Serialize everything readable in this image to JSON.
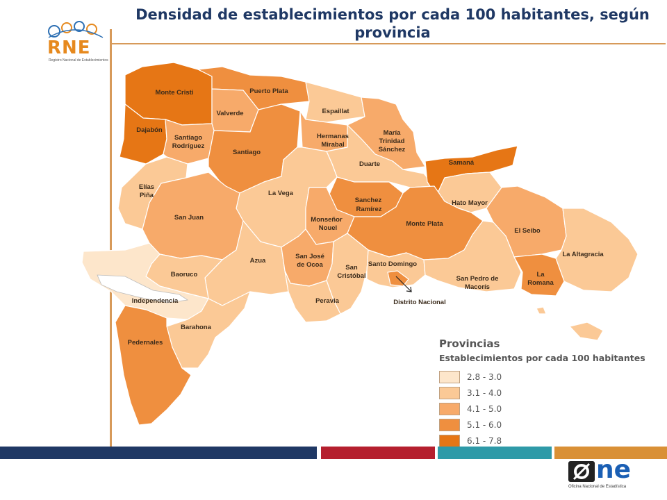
{
  "title": "Densidad de establecimientos por cada 100 habitantes, según provincia",
  "logo_rne": {
    "text": "RNE",
    "subtitle": "Registro Nacional de Establecimientos"
  },
  "logo_one": {
    "text": "ne",
    "caption": "Oficina Nacional de Estadística"
  },
  "legend": {
    "title": "Provincias",
    "subtitle": "Establecimientos por cada 100 habitantes",
    "classes": [
      {
        "label": "2.8 - 3.0",
        "color": "#fde6cb"
      },
      {
        "label": "3.1 - 4.0",
        "color": "#fbc996"
      },
      {
        "label": "4.1 - 5.0",
        "color": "#f7aa6a"
      },
      {
        "label": "5.1 - 6.0",
        "color": "#ef8f3f"
      },
      {
        "label": "6.1 - 7.8",
        "color": "#e67615"
      }
    ]
  },
  "provinces": {
    "monte_cristi": "Monte Cristi",
    "puerto_plata": "Puerto Plata",
    "valverde": "Valverde",
    "espaillat": "Espaillat",
    "dajabon": "Dajabón",
    "santiago_rodriguez": [
      "Santiago",
      "Rodríguez"
    ],
    "santiago": "Santiago",
    "hermanas_mirabal": [
      "Hermanas",
      "Mirabal"
    ],
    "maria_trinidad_sanchez": [
      "María",
      "Trinidad",
      "Sánchez"
    ],
    "duarte": "Duarte",
    "samana": "Samaná",
    "elias_pina": [
      "Elías",
      "Piña"
    ],
    "la_vega": "La Vega",
    "sanchez_ramirez": [
      "Sanchez",
      "Ramírez"
    ],
    "hato_mayor": "Hato Mayor",
    "san_juan": "San Juan",
    "monsenor_nouel": [
      "Monseñor",
      "Nouel"
    ],
    "monte_plata": "Monte Plata",
    "el_seibo": "El Seibo",
    "la_altagracia": "La Altagracia",
    "azua": "Azua",
    "san_jose_de_ocoa": [
      "San José",
      "de Ocoa"
    ],
    "san_cristobal": [
      "San",
      "Cristóbal"
    ],
    "santo_domingo": "Santo Domingo",
    "baoruco": "Baoruco",
    "san_pedro_de_macoris": [
      "San Pedro de",
      "Macorís"
    ],
    "la_romana": [
      "La",
      "Romana"
    ],
    "independencia": "Independencia",
    "peravia": "Peravia",
    "distrito_nacional": "Distrito Nacional",
    "barahona": "Barahona",
    "pedernales": "Pedernales"
  },
  "footer_bar_colors": [
    "#1f3864",
    "#b51f2e",
    "#2e9aa8",
    "#d99036"
  ]
}
